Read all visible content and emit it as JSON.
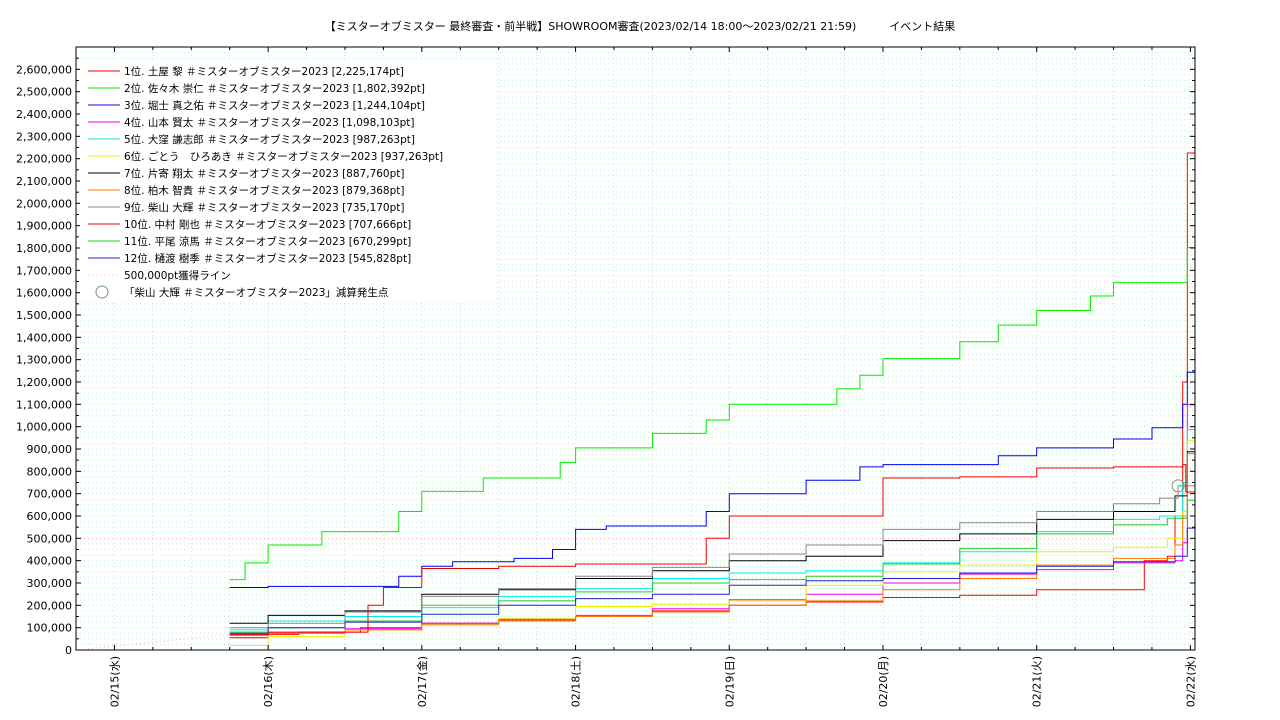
{
  "chart_data": {
    "type": "line",
    "title": "【ミスターオブミスター 最終審査・前半戦】SHOWROOM審査(2023/02/14 18:00～2023/02/21 21:59)　　　イベント結果",
    "xlabel": "",
    "ylabel": "",
    "ylim": [
      0,
      2700000
    ],
    "yticks": [
      0,
      100000,
      200000,
      300000,
      400000,
      500000,
      600000,
      700000,
      800000,
      900000,
      1000000,
      1100000,
      1200000,
      1300000,
      1400000,
      1500000,
      1600000,
      1700000,
      1800000,
      1900000,
      2000000,
      2100000,
      2200000,
      2300000,
      2400000,
      2500000,
      2600000
    ],
    "ytick_labels": [
      "0",
      "100,000",
      "200,000",
      "300,000",
      "400,000",
      "500,000",
      "600,000",
      "700,000",
      "800,000",
      "900,000",
      "1,000,000",
      "1,100,000",
      "1,200,000",
      "1,300,000",
      "1,400,000",
      "1,500,000",
      "1,600,000",
      "1,700,000",
      "1,800,000",
      "1,900,000",
      "2,000,000",
      "2,100,000",
      "2,200,000",
      "2,300,000",
      "2,400,000",
      "2,500,000",
      "2,600,000"
    ],
    "xlim": [
      -0.25,
      7.03
    ],
    "xticks": [
      0,
      1,
      2,
      3,
      4,
      5,
      6,
      7
    ],
    "xtick_labels": [
      "02/15(水)",
      "02/16(木)",
      "02/17(金)",
      "02/18(土)",
      "02/19(日)",
      "02/20(月)",
      "02/21(火)",
      "02/22(水)"
    ],
    "grid": true,
    "legend_position": "top-left",
    "threshold": {
      "label": "500,000pt獲得ライン",
      "value": 500000,
      "color": "#ffb0b0"
    },
    "marker": {
      "label": "「柴山 大輝 ＃ミスターオブミスター2023」減算発生点",
      "x": 6.92,
      "y": 735000
    },
    "series": [
      {
        "name": " 1位. 土屋 黎 ＃ミスターオブミスター2023 [2,225,174pt]",
        "color": "#ff0000",
        "points": [
          [
            0.75,
            55000
          ],
          [
            1.0,
            70000
          ],
          [
            1.2,
            80000
          ],
          [
            1.6,
            100000
          ],
          [
            2.0,
            120000
          ],
          [
            2.5,
            135000
          ],
          [
            3.0,
            150000
          ],
          [
            3.5,
            175000
          ],
          [
            4.0,
            200000
          ],
          [
            4.5,
            215000
          ],
          [
            5.0,
            235000
          ],
          [
            5.5,
            245000
          ],
          [
            6.0,
            270000
          ],
          [
            6.5,
            270000
          ],
          [
            6.7,
            400000
          ],
          [
            6.85,
            420000
          ],
          [
            6.9,
            600000
          ],
          [
            6.95,
            1200000
          ],
          [
            6.98,
            2225174
          ],
          [
            7.03,
            2225174
          ]
        ]
      },
      {
        "name": " 2位. 佐々木 崇仁 ＃ミスターオブミスター2023 [1,802,392pt]",
        "color": "#00ee00",
        "points": [
          [
            0.75,
            315000
          ],
          [
            0.85,
            390000
          ],
          [
            1.0,
            470000
          ],
          [
            1.35,
            530000
          ],
          [
            1.85,
            620000
          ],
          [
            2.0,
            710000
          ],
          [
            2.4,
            770000
          ],
          [
            2.9,
            840000
          ],
          [
            3.0,
            905000
          ],
          [
            3.5,
            970000
          ],
          [
            3.85,
            1030000
          ],
          [
            4.0,
            1100000
          ],
          [
            4.7,
            1170000
          ],
          [
            4.85,
            1230000
          ],
          [
            5.0,
            1305000
          ],
          [
            5.5,
            1380000
          ],
          [
            5.75,
            1455000
          ],
          [
            6.0,
            1520000
          ],
          [
            6.35,
            1585000
          ],
          [
            6.5,
            1645000
          ],
          [
            6.95,
            1645000
          ],
          [
            6.98,
            1802392
          ],
          [
            7.03,
            1802392
          ]
        ]
      },
      {
        "name": " 3位. 堀士 真之佑 ＃ミスターオブミスター2023 [1,244,104pt]",
        "color": "#0000ee",
        "points": [
          [
            0.75,
            280000
          ],
          [
            1.0,
            285000
          ],
          [
            1.75,
            285000
          ],
          [
            1.85,
            330000
          ],
          [
            2.0,
            375000
          ],
          [
            2.2,
            395000
          ],
          [
            2.6,
            410000
          ],
          [
            2.85,
            450000
          ],
          [
            3.0,
            540000
          ],
          [
            3.2,
            555000
          ],
          [
            3.75,
            555000
          ],
          [
            3.85,
            620000
          ],
          [
            4.0,
            700000
          ],
          [
            4.5,
            760000
          ],
          [
            4.85,
            820000
          ],
          [
            5.0,
            830000
          ],
          [
            5.5,
            830000
          ],
          [
            5.75,
            870000
          ],
          [
            6.0,
            905000
          ],
          [
            6.5,
            945000
          ],
          [
            6.75,
            995000
          ],
          [
            6.95,
            1100000
          ],
          [
            6.98,
            1244104
          ],
          [
            7.03,
            1244104
          ]
        ]
      },
      {
        "name": " 4位. 山本 賢太 ＃ミスターオブミスター2023 [1,098,103pt]",
        "color": "#ee00ee",
        "points": [
          [
            0.75,
            70000
          ],
          [
            1.0,
            75000
          ],
          [
            1.5,
            95000
          ],
          [
            2.0,
            120000
          ],
          [
            2.5,
            140000
          ],
          [
            3.0,
            155000
          ],
          [
            3.5,
            185000
          ],
          [
            4.0,
            225000
          ],
          [
            4.5,
            250000
          ],
          [
            5.0,
            300000
          ],
          [
            5.5,
            340000
          ],
          [
            6.0,
            360000
          ],
          [
            6.5,
            390000
          ],
          [
            6.9,
            400000
          ],
          [
            6.95,
            480000
          ],
          [
            6.98,
            1098103
          ],
          [
            7.03,
            1098103
          ]
        ]
      },
      {
        "name": " 5位. 大窪 謙志郎 ＃ミスターオブミスター2023 [987,263pt]",
        "color": "#00eeee",
        "points": [
          [
            0.75,
            90000
          ],
          [
            1.0,
            130000
          ],
          [
            1.5,
            150000
          ],
          [
            2.0,
            190000
          ],
          [
            2.5,
            240000
          ],
          [
            3.0,
            275000
          ],
          [
            3.5,
            320000
          ],
          [
            4.0,
            345000
          ],
          [
            4.5,
            355000
          ],
          [
            5.0,
            390000
          ],
          [
            5.5,
            440000
          ],
          [
            6.0,
            530000
          ],
          [
            6.5,
            585000
          ],
          [
            6.8,
            600000
          ],
          [
            6.95,
            750000
          ],
          [
            6.98,
            987263
          ],
          [
            7.03,
            987263
          ]
        ]
      },
      {
        "name": " 6位. ごとう　ひろあき ＃ミスターオブミスター2023 [937,263pt]",
        "color": "#eeee00",
        "points": [
          [
            0.75,
            20000
          ],
          [
            1.0,
            60000
          ],
          [
            1.5,
            90000
          ],
          [
            2.0,
            110000
          ],
          [
            2.5,
            140000
          ],
          [
            3.0,
            195000
          ],
          [
            3.5,
            205000
          ],
          [
            4.0,
            220000
          ],
          [
            4.5,
            290000
          ],
          [
            5.0,
            350000
          ],
          [
            5.5,
            380000
          ],
          [
            6.0,
            440000
          ],
          [
            6.5,
            460000
          ],
          [
            6.85,
            500000
          ],
          [
            6.95,
            620000
          ],
          [
            6.98,
            937263
          ],
          [
            7.03,
            937263
          ]
        ]
      },
      {
        "name": " 7位. 片寄 翔太 ＃ミスターオブミスター2023 [887,760pt]",
        "color": "#000000",
        "points": [
          [
            0.75,
            120000
          ],
          [
            1.0,
            155000
          ],
          [
            1.5,
            175000
          ],
          [
            2.0,
            250000
          ],
          [
            2.5,
            270000
          ],
          [
            3.0,
            320000
          ],
          [
            3.5,
            355000
          ],
          [
            4.0,
            400000
          ],
          [
            4.5,
            420000
          ],
          [
            5.0,
            490000
          ],
          [
            5.5,
            520000
          ],
          [
            6.0,
            585000
          ],
          [
            6.5,
            620000
          ],
          [
            6.9,
            690000
          ],
          [
            6.98,
            887760
          ],
          [
            7.03,
            887760
          ]
        ]
      },
      {
        "name": " 8位. 柏木 智貴 ＃ミスターオブミスター2023 [879,368pt]",
        "color": "#ff7700",
        "points": [
          [
            0.75,
            65000
          ],
          [
            1.0,
            75000
          ],
          [
            1.5,
            90000
          ],
          [
            2.0,
            115000
          ],
          [
            2.5,
            130000
          ],
          [
            3.0,
            150000
          ],
          [
            3.5,
            170000
          ],
          [
            4.0,
            200000
          ],
          [
            4.5,
            220000
          ],
          [
            5.0,
            270000
          ],
          [
            5.5,
            320000
          ],
          [
            6.0,
            380000
          ],
          [
            6.5,
            410000
          ],
          [
            6.9,
            470000
          ],
          [
            6.95,
            600000
          ],
          [
            6.98,
            879368
          ],
          [
            7.03,
            879368
          ]
        ]
      },
      {
        "name": " 9位. 柴山 大輝 ＃ミスターオブミスター2023 [735,170pt]",
        "color": "#888888",
        "points": [
          [
            0.75,
            100000
          ],
          [
            1.0,
            120000
          ],
          [
            1.5,
            170000
          ],
          [
            2.0,
            240000
          ],
          [
            2.5,
            275000
          ],
          [
            3.0,
            330000
          ],
          [
            3.5,
            370000
          ],
          [
            4.0,
            430000
          ],
          [
            4.5,
            470000
          ],
          [
            5.0,
            540000
          ],
          [
            5.5,
            570000
          ],
          [
            6.0,
            620000
          ],
          [
            6.5,
            655000
          ],
          [
            6.8,
            680000
          ],
          [
            6.92,
            735170
          ],
          [
            7.03,
            735170
          ]
        ]
      },
      {
        "name": "10位. 中村 剛也 ＃ミスターオブミスター2023 [707,666pt]",
        "color": "#ee0000",
        "points": [
          [
            0.75,
            70000
          ],
          [
            1.0,
            80000
          ],
          [
            1.65,
            200000
          ],
          [
            1.75,
            280000
          ],
          [
            2.0,
            365000
          ],
          [
            2.5,
            375000
          ],
          [
            3.0,
            385000
          ],
          [
            3.75,
            385000
          ],
          [
            3.85,
            500000
          ],
          [
            4.0,
            600000
          ],
          [
            4.5,
            600000
          ],
          [
            4.85,
            600000
          ],
          [
            5.0,
            770000
          ],
          [
            5.5,
            775000
          ],
          [
            6.0,
            815000
          ],
          [
            6.5,
            820000
          ],
          [
            6.95,
            830000
          ],
          [
            6.97,
            707666
          ],
          [
            7.03,
            707666
          ]
        ]
      },
      {
        "name": "11位. 平尾 涼馬 ＃ミスターオブミスター2023 [670,299pt]",
        "color": "#22cc22",
        "points": [
          [
            0.75,
            80000
          ],
          [
            1.0,
            100000
          ],
          [
            1.5,
            130000
          ],
          [
            2.0,
            200000
          ],
          [
            2.5,
            220000
          ],
          [
            3.0,
            260000
          ],
          [
            3.5,
            300000
          ],
          [
            4.0,
            315000
          ],
          [
            4.5,
            330000
          ],
          [
            5.0,
            385000
          ],
          [
            5.5,
            455000
          ],
          [
            6.0,
            520000
          ],
          [
            6.5,
            560000
          ],
          [
            6.85,
            590000
          ],
          [
            6.98,
            670299
          ],
          [
            7.03,
            670299
          ]
        ]
      },
      {
        "name": "12位. 樋渡 樹季 ＃ミスターオブミスター2023 [545,828pt]",
        "color": "#2222cc",
        "points": [
          [
            0.75,
            75000
          ],
          [
            1.0,
            100000
          ],
          [
            1.5,
            125000
          ],
          [
            2.0,
            160000
          ],
          [
            2.5,
            200000
          ],
          [
            3.0,
            230000
          ],
          [
            3.5,
            250000
          ],
          [
            4.0,
            290000
          ],
          [
            4.5,
            310000
          ],
          [
            5.0,
            320000
          ],
          [
            5.5,
            345000
          ],
          [
            6.0,
            375000
          ],
          [
            6.5,
            395000
          ],
          [
            6.9,
            420000
          ],
          [
            6.98,
            545828
          ],
          [
            7.03,
            545828
          ]
        ]
      }
    ]
  }
}
